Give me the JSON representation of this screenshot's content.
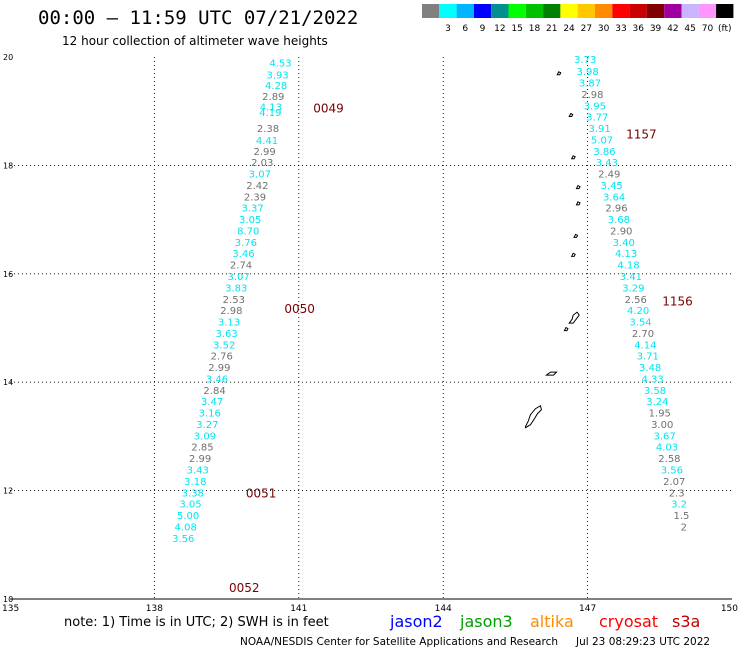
{
  "header": {
    "title": "00:00 – 11:59 UTC 07/21/2022",
    "subtitle": "12 hour collection of altimeter wave heights"
  },
  "legend": {
    "unit": "(ft)",
    "swatches": [
      {
        "color": "#808080",
        "label": ""
      },
      {
        "color": "#00ffff",
        "label": "3"
      },
      {
        "color": "#00b4ff",
        "label": "6"
      },
      {
        "color": "#0000ff",
        "label": "9"
      },
      {
        "color": "#009090",
        "label": "12"
      },
      {
        "color": "#00ff00",
        "label": "15"
      },
      {
        "color": "#00c000",
        "label": "18"
      },
      {
        "color": "#008000",
        "label": "21"
      },
      {
        "color": "#ffff00",
        "label": "24"
      },
      {
        "color": "#ffc800",
        "label": "27"
      },
      {
        "color": "#ff8c00",
        "label": "30"
      },
      {
        "color": "#ff0000",
        "label": "33"
      },
      {
        "color": "#c80000",
        "label": "36"
      },
      {
        "color": "#800000",
        "label": "39"
      },
      {
        "color": "#a000a0",
        "label": "42"
      },
      {
        "color": "#c8b4ff",
        "label": "45"
      },
      {
        "color": "#ff96ff",
        "label": "70"
      },
      {
        "color": "#000000",
        "label": ""
      }
    ]
  },
  "axes": {
    "x_ticks": [
      "135",
      "138",
      "141",
      "144",
      "147",
      "150"
    ],
    "y_ticks": [
      "10",
      "12",
      "14",
      "16",
      "18",
      "20"
    ]
  },
  "colors": {
    "cyan": "#00e5f0",
    "gray": "#707070",
    "time": "#7a0000"
  },
  "tracks": [
    {
      "name": "track-west",
      "points": [
        {
          "lon": 140.62,
          "lat": 19.89,
          "v": "4.53",
          "c": "cyan"
        },
        {
          "lon": 140.56,
          "lat": 19.67,
          "v": "3.93",
          "c": "cyan"
        },
        {
          "lon": 140.53,
          "lat": 19.47,
          "v": "4.28",
          "c": "cyan"
        },
        {
          "lon": 140.47,
          "lat": 19.27,
          "v": "2.89",
          "c": "gray"
        },
        {
          "lon": 140.42,
          "lat": 19.08,
          "v": "4.13",
          "c": "cyan"
        },
        {
          "lon": 140.41,
          "lat": 18.98,
          "v": "4.19",
          "c": "cyan"
        },
        {
          "lon": 140.36,
          "lat": 18.68,
          "v": "2.38",
          "c": "gray"
        },
        {
          "lon": 140.34,
          "lat": 18.46,
          "v": "4.41",
          "c": "cyan"
        },
        {
          "lon": 140.29,
          "lat": 18.26,
          "v": "2.99",
          "c": "gray"
        },
        {
          "lon": 140.24,
          "lat": 18.05,
          "v": "2.03",
          "c": "gray"
        },
        {
          "lon": 140.19,
          "lat": 17.84,
          "v": "3.07",
          "c": "cyan"
        },
        {
          "lon": 140.14,
          "lat": 17.63,
          "v": "2.42",
          "c": "gray"
        },
        {
          "lon": 140.09,
          "lat": 17.42,
          "v": "2.39",
          "c": "gray"
        },
        {
          "lon": 140.04,
          "lat": 17.21,
          "v": "3.37",
          "c": "cyan"
        },
        {
          "lon": 139.99,
          "lat": 17.0,
          "v": "3.05",
          "c": "cyan"
        },
        {
          "lon": 139.95,
          "lat": 16.79,
          "v": "8.70",
          "c": "cyan"
        },
        {
          "lon": 139.9,
          "lat": 16.58,
          "v": "3.76",
          "c": "cyan"
        },
        {
          "lon": 139.85,
          "lat": 16.37,
          "v": "3.46",
          "c": "cyan"
        },
        {
          "lon": 139.8,
          "lat": 16.16,
          "v": "2.74",
          "c": "gray"
        },
        {
          "lon": 139.75,
          "lat": 15.95,
          "v": "3.07",
          "c": "cyan"
        },
        {
          "lon": 139.7,
          "lat": 15.74,
          "v": "3.83",
          "c": "cyan"
        },
        {
          "lon": 139.65,
          "lat": 15.53,
          "v": "2.53",
          "c": "gray"
        },
        {
          "lon": 139.6,
          "lat": 15.32,
          "v": "2.98",
          "c": "gray"
        },
        {
          "lon": 139.55,
          "lat": 15.11,
          "v": "3.13",
          "c": "cyan"
        },
        {
          "lon": 139.5,
          "lat": 14.9,
          "v": "3.63",
          "c": "cyan"
        },
        {
          "lon": 139.45,
          "lat": 14.69,
          "v": "3.52",
          "c": "cyan"
        },
        {
          "lon": 139.4,
          "lat": 14.48,
          "v": "2.76",
          "c": "gray"
        },
        {
          "lon": 139.35,
          "lat": 14.27,
          "v": "2.99",
          "c": "gray"
        },
        {
          "lon": 139.3,
          "lat": 14.06,
          "v": "3.46",
          "c": "cyan"
        },
        {
          "lon": 139.25,
          "lat": 13.85,
          "v": "2.84",
          "c": "gray"
        },
        {
          "lon": 139.2,
          "lat": 13.64,
          "v": "3.47",
          "c": "cyan"
        },
        {
          "lon": 139.15,
          "lat": 13.43,
          "v": "3.16",
          "c": "cyan"
        },
        {
          "lon": 139.1,
          "lat": 13.22,
          "v": "3.27",
          "c": "cyan"
        },
        {
          "lon": 139.05,
          "lat": 13.01,
          "v": "3.09",
          "c": "cyan"
        },
        {
          "lon": 139.0,
          "lat": 12.8,
          "v": "2.85",
          "c": "gray"
        },
        {
          "lon": 138.95,
          "lat": 12.59,
          "v": "2.99",
          "c": "gray"
        },
        {
          "lon": 138.9,
          "lat": 12.38,
          "v": "3.43",
          "c": "cyan"
        },
        {
          "lon": 138.85,
          "lat": 12.17,
          "v": "3.18",
          "c": "cyan"
        },
        {
          "lon": 138.8,
          "lat": 11.96,
          "v": "3.38",
          "c": "cyan"
        },
        {
          "lon": 138.75,
          "lat": 11.75,
          "v": "3.05",
          "c": "cyan"
        },
        {
          "lon": 138.7,
          "lat": 11.54,
          "v": "5.00",
          "c": "cyan"
        },
        {
          "lon": 138.65,
          "lat": 11.33,
          "v": "4.08",
          "c": "cyan"
        },
        {
          "lon": 138.6,
          "lat": 11.12,
          "v": "3.56",
          "c": "cyan"
        }
      ],
      "times": [
        {
          "lon": 141.3,
          "lat": 19.05,
          "label": "0049"
        },
        {
          "lon": 140.7,
          "lat": 15.35,
          "label": "0050"
        },
        {
          "lon": 139.9,
          "lat": 11.95,
          "label": "0051"
        },
        {
          "lon": 139.55,
          "lat": 10.2,
          "label": "0052"
        }
      ]
    },
    {
      "name": "track-east",
      "points": [
        {
          "lon": 146.95,
          "lat": 19.95,
          "v": "3.73",
          "c": "cyan"
        },
        {
          "lon": 147.0,
          "lat": 19.73,
          "v": "3.98",
          "c": "cyan"
        },
        {
          "lon": 147.05,
          "lat": 19.52,
          "v": "3.87",
          "c": "cyan"
        },
        {
          "lon": 147.1,
          "lat": 19.31,
          "v": "2.98",
          "c": "gray"
        },
        {
          "lon": 147.15,
          "lat": 19.1,
          "v": "3.95",
          "c": "cyan"
        },
        {
          "lon": 147.2,
          "lat": 18.89,
          "v": "3.77",
          "c": "cyan"
        },
        {
          "lon": 147.25,
          "lat": 18.68,
          "v": "3.91",
          "c": "cyan"
        },
        {
          "lon": 147.3,
          "lat": 18.47,
          "v": "5.07",
          "c": "cyan"
        },
        {
          "lon": 147.35,
          "lat": 18.26,
          "v": "3.86",
          "c": "cyan"
        },
        {
          "lon": 147.4,
          "lat": 18.05,
          "v": "3.43",
          "c": "cyan"
        },
        {
          "lon": 147.45,
          "lat": 17.84,
          "v": "2.49",
          "c": "gray"
        },
        {
          "lon": 147.5,
          "lat": 17.63,
          "v": "3.45",
          "c": "cyan"
        },
        {
          "lon": 147.55,
          "lat": 17.42,
          "v": "3.64",
          "c": "cyan"
        },
        {
          "lon": 147.6,
          "lat": 17.21,
          "v": "2.96",
          "c": "gray"
        },
        {
          "lon": 147.65,
          "lat": 17.0,
          "v": "3.68",
          "c": "cyan"
        },
        {
          "lon": 147.7,
          "lat": 16.79,
          "v": "2.90",
          "c": "gray"
        },
        {
          "lon": 147.75,
          "lat": 16.58,
          "v": "3.40",
          "c": "cyan"
        },
        {
          "lon": 147.8,
          "lat": 16.37,
          "v": "4.13",
          "c": "cyan"
        },
        {
          "lon": 147.85,
          "lat": 16.16,
          "v": "4.18",
          "c": "cyan"
        },
        {
          "lon": 147.9,
          "lat": 15.95,
          "v": "3.41",
          "c": "cyan"
        },
        {
          "lon": 147.95,
          "lat": 15.74,
          "v": "3.29",
          "c": "cyan"
        },
        {
          "lon": 148.0,
          "lat": 15.53,
          "v": "2.56",
          "c": "gray"
        },
        {
          "lon": 148.05,
          "lat": 15.32,
          "v": "4.20",
          "c": "cyan"
        },
        {
          "lon": 148.1,
          "lat": 15.11,
          "v": "3.54",
          "c": "cyan"
        },
        {
          "lon": 148.15,
          "lat": 14.9,
          "v": "2.70",
          "c": "gray"
        },
        {
          "lon": 148.2,
          "lat": 14.69,
          "v": "4.14",
          "c": "cyan"
        },
        {
          "lon": 148.25,
          "lat": 14.48,
          "v": "3.71",
          "c": "cyan"
        },
        {
          "lon": 148.3,
          "lat": 14.27,
          "v": "3.48",
          "c": "cyan"
        },
        {
          "lon": 148.35,
          "lat": 14.06,
          "v": "4.33",
          "c": "cyan"
        },
        {
          "lon": 148.4,
          "lat": 13.85,
          "v": "3.58",
          "c": "cyan"
        },
        {
          "lon": 148.45,
          "lat": 13.64,
          "v": "3.24",
          "c": "cyan"
        },
        {
          "lon": 148.5,
          "lat": 13.43,
          "v": "1.95",
          "c": "gray"
        },
        {
          "lon": 148.55,
          "lat": 13.22,
          "v": "3.00",
          "c": "gray"
        },
        {
          "lon": 148.6,
          "lat": 13.01,
          "v": "3.67",
          "c": "cyan"
        },
        {
          "lon": 148.65,
          "lat": 12.8,
          "v": "4.03",
          "c": "cyan"
        },
        {
          "lon": 148.7,
          "lat": 12.59,
          "v": "2.58",
          "c": "gray"
        },
        {
          "lon": 148.75,
          "lat": 12.38,
          "v": "3.56",
          "c": "cyan"
        },
        {
          "lon": 148.8,
          "lat": 12.17,
          "v": "2.07",
          "c": "gray"
        },
        {
          "lon": 148.85,
          "lat": 11.96,
          "v": "2.3",
          "c": "gray"
        },
        {
          "lon": 148.9,
          "lat": 11.75,
          "v": "3.2",
          "c": "cyan"
        },
        {
          "lon": 148.95,
          "lat": 11.54,
          "v": "1.5",
          "c": "gray"
        },
        {
          "lon": 149.0,
          "lat": 11.33,
          "v": "2",
          "c": "gray"
        }
      ],
      "times": [
        {
          "lon": 147.8,
          "lat": 18.57,
          "label": "1157"
        },
        {
          "lon": 148.55,
          "lat": 15.49,
          "label": "1156"
        }
      ]
    }
  ],
  "islands": [
    {
      "lon": 146.4,
      "lat": 19.7
    },
    {
      "lon": 146.65,
      "lat": 18.93
    },
    {
      "lon": 146.7,
      "lat": 18.15
    },
    {
      "lon": 146.8,
      "lat": 17.6
    },
    {
      "lon": 146.8,
      "lat": 17.3
    },
    {
      "lon": 146.75,
      "lat": 16.7
    },
    {
      "lon": 146.7,
      "lat": 16.35
    },
    {
      "lon": 146.7,
      "lat": 15.2
    },
    {
      "lon": 146.55,
      "lat": 14.98
    },
    {
      "lon": 146.25,
      "lat": 14.15
    },
    {
      "lon": 145.75,
      "lat": 13.4
    }
  ],
  "footer": {
    "note": "note:  1) Time is in UTC;  2) SWH is in feet",
    "missions": [
      {
        "name": "jason2",
        "color": "#0000ff"
      },
      {
        "name": "jason3",
        "color": "#00a000"
      },
      {
        "name": "altika",
        "color": "#ff8c00"
      },
      {
        "name": "cryosat",
        "color": "#ff0000"
      },
      {
        "name": "s3a",
        "color": "#c00000"
      }
    ],
    "credit": "NOAA/NESDIS Center for Satellite Applications and Research",
    "timestamp": "Jul 23 08:29:23 UTC 2022"
  }
}
